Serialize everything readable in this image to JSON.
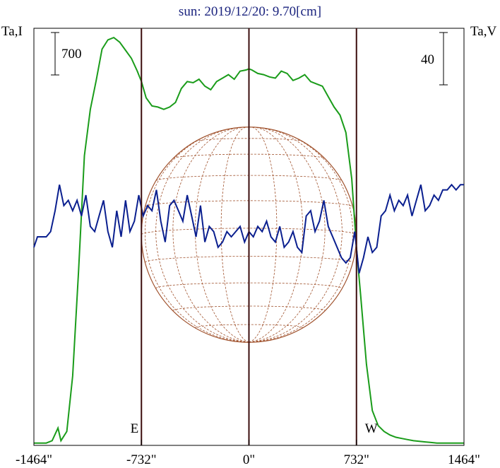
{
  "chart_data": {
    "type": "line",
    "title": "sun: 2019/12/20: 9.70[cm]",
    "left_axis_label": "Ta,I",
    "right_axis_label": "Ta,V",
    "scale_bar_left": "700",
    "scale_bar_right": "40",
    "x_ticks": [
      {
        "value": -1464,
        "label": "-1464\""
      },
      {
        "value": -732,
        "label": "-732\""
      },
      {
        "value": 0,
        "label": "0\""
      },
      {
        "value": 732,
        "label": "732\""
      },
      {
        "value": 1464,
        "label": "1464\""
      }
    ],
    "xlim": [
      -1464,
      1464
    ],
    "limb_markers": [
      {
        "label": "E",
        "x": -732
      },
      {
        "label": "W",
        "x": 732
      }
    ],
    "center_line_x": 0,
    "solar_disk": {
      "radius_arcsec": 732,
      "color": "#a0522d"
    },
    "series": [
      {
        "name": "Ta,I",
        "color": "#1a9c1a",
        "ylim": [
          0,
          3600
        ],
        "x": [
          -1464,
          -1380,
          -1340,
          -1300,
          -1280,
          -1240,
          -1200,
          -1160,
          -1120,
          -1080,
          -1040,
          -1000,
          -960,
          -920,
          -880,
          -840,
          -800,
          -760,
          -732,
          -700,
          -660,
          -620,
          -580,
          -540,
          -500,
          -460,
          -420,
          -380,
          -340,
          -300,
          -260,
          -220,
          -180,
          -140,
          -100,
          -60,
          -20,
          0,
          20,
          60,
          100,
          140,
          180,
          220,
          260,
          300,
          340,
          380,
          420,
          460,
          500,
          540,
          580,
          620,
          660,
          700,
          732,
          760,
          800,
          840,
          880,
          920,
          960,
          1000,
          1040,
          1080,
          1120,
          1160,
          1200,
          1240,
          1280,
          1320,
          1360,
          1400,
          1440,
          1464
        ],
        "values": [
          20,
          20,
          40,
          150,
          40,
          120,
          600,
          1500,
          2500,
          2900,
          3150,
          3420,
          3500,
          3520,
          3480,
          3410,
          3340,
          3230,
          3140,
          3000,
          2930,
          2920,
          2900,
          2920,
          2960,
          3080,
          3140,
          3130,
          3160,
          3100,
          3070,
          3140,
          3170,
          3200,
          3160,
          3230,
          3240,
          3250,
          3240,
          3210,
          3200,
          3180,
          3170,
          3230,
          3210,
          3150,
          3170,
          3200,
          3140,
          3120,
          3100,
          3010,
          2920,
          2850,
          2700,
          2300,
          1700,
          1300,
          700,
          300,
          170,
          120,
          90,
          70,
          60,
          50,
          40,
          35,
          30,
          25,
          20,
          20,
          20,
          20,
          20,
          20
        ]
      },
      {
        "name": "Ta,V",
        "color": "#0a1f8f",
        "ylim": [
          -80,
          80
        ],
        "x": [
          -1464,
          -1440,
          -1410,
          -1380,
          -1350,
          -1320,
          -1290,
          -1260,
          -1230,
          -1200,
          -1170,
          -1140,
          -1110,
          -1080,
          -1050,
          -1020,
          -990,
          -960,
          -930,
          -900,
          -870,
          -840,
          -810,
          -780,
          -750,
          -720,
          -690,
          -660,
          -630,
          -600,
          -570,
          -540,
          -510,
          -480,
          -450,
          -420,
          -390,
          -360,
          -330,
          -300,
          -270,
          -240,
          -210,
          -180,
          -150,
          -120,
          -90,
          -60,
          -30,
          0,
          30,
          60,
          90,
          120,
          150,
          180,
          210,
          240,
          270,
          300,
          330,
          360,
          390,
          420,
          450,
          480,
          510,
          540,
          570,
          600,
          630,
          660,
          690,
          720,
          750,
          780,
          810,
          840,
          870,
          900,
          930,
          960,
          990,
          1020,
          1050,
          1080,
          1110,
          1140,
          1170,
          1200,
          1230,
          1260,
          1290,
          1320,
          1350,
          1380,
          1410,
          1440,
          1464
        ],
        "values": [
          -4,
          0,
          0,
          0,
          2,
          10,
          20,
          12,
          14,
          10,
          14,
          8,
          16,
          4,
          2,
          8,
          14,
          2,
          -4,
          10,
          0,
          14,
          2,
          6,
          16,
          8,
          12,
          10,
          18,
          6,
          -2,
          12,
          14,
          10,
          6,
          16,
          8,
          0,
          12,
          -2,
          4,
          2,
          -4,
          -2,
          2,
          0,
          2,
          4,
          -2,
          2,
          0,
          4,
          2,
          6,
          0,
          -2,
          4,
          -4,
          -2,
          2,
          -4,
          -6,
          8,
          10,
          2,
          6,
          14,
          4,
          0,
          -4,
          -8,
          -10,
          -8,
          2,
          -14,
          -8,
          0,
          -6,
          -4,
          8,
          10,
          16,
          10,
          14,
          12,
          16,
          8,
          14,
          20,
          10,
          12,
          16,
          14,
          18,
          18,
          20,
          18,
          20,
          20
        ]
      }
    ]
  }
}
